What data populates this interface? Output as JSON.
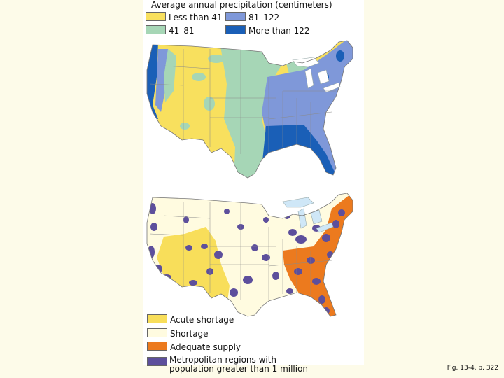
{
  "top_map": {
    "title": "Average annual precipitation (centimeters)",
    "legend": [
      {
        "label": "Less than 41",
        "color": "#f8e05e"
      },
      {
        "label": "41–81",
        "color": "#a6d6b6"
      },
      {
        "label": "81–122",
        "color": "#7f98d9"
      },
      {
        "label": "More than 122",
        "color": "#1a5fb7"
      }
    ]
  },
  "bottom_map": {
    "legend": [
      {
        "label": "Acute shortage",
        "color": "#f8de5a"
      },
      {
        "label": "Shortage",
        "color": "#fffbe0"
      },
      {
        "label": "Adequate supply",
        "color": "#ec7a1e"
      },
      {
        "label": "Metropolitan regions with population greater than 1 million",
        "line1": "Metropolitan regions with",
        "line2": "population greater than 1 million",
        "color": "#5d4f9c"
      }
    ]
  },
  "caption": "Fig. 13-4, p. 322"
}
